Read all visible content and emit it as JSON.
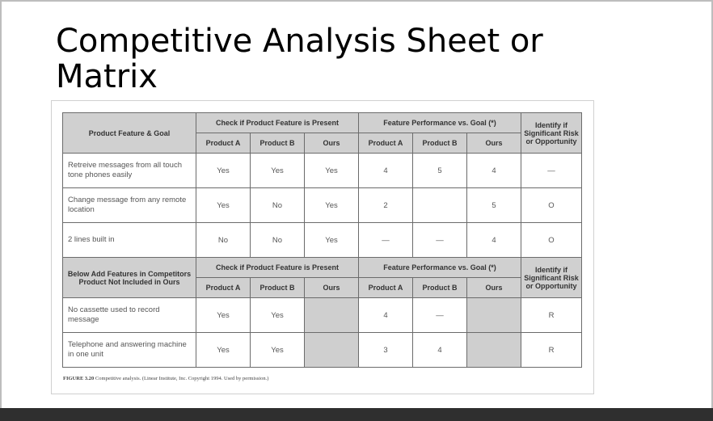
{
  "slide": {
    "title": "Competitive Analysis Sheet or Matrix"
  },
  "table": {
    "section1": {
      "feature_header": "Product Feature & Goal",
      "group_present": "Check if Product Feature is Present",
      "group_performance": "Feature Performance vs. Goal (*)",
      "risk_header": "Identify if Significant Risk or Opportunity",
      "subheaders": [
        "Product A",
        "Product B",
        "Ours",
        "Product A",
        "Product B",
        "Ours"
      ],
      "rows": [
        {
          "feature": "Retreive messages from all touch tone phones easily",
          "cells": [
            "Yes",
            "Yes",
            "Yes",
            "4",
            "5",
            "4"
          ],
          "risk": "—"
        },
        {
          "feature": "Change message from any remote location",
          "cells": [
            "Yes",
            "No",
            "Yes",
            "2",
            "",
            "5"
          ],
          "risk": "O"
        },
        {
          "feature": "2 lines built in",
          "cells": [
            "No",
            "No",
            "Yes",
            "—",
            "—",
            "4"
          ],
          "risk": "O"
        }
      ]
    },
    "section2": {
      "feature_header": "Below Add Features in Competitors Product Not Included in Ours",
      "group_present": "Check if Product Feature is Present",
      "group_performance": "Feature Performance vs. Goal (*)",
      "risk_header": "Identify if Significant Risk or Opportunity",
      "subheaders": [
        "Product A",
        "Product B",
        "Ours",
        "Product A",
        "Product B",
        "Ours"
      ],
      "rows": [
        {
          "feature": "No cassette used to record message",
          "cells": [
            "Yes",
            "Yes",
            "",
            "4",
            "—",
            ""
          ],
          "risk": "R"
        },
        {
          "feature": "Telephone and answering machine in one unit",
          "cells": [
            "Yes",
            "Yes",
            "",
            "3",
            "4",
            ""
          ],
          "risk": "R"
        }
      ]
    }
  },
  "caption": {
    "label": "FIGURE 3.20",
    "text": "Competitive analysis. (Linear Institute, Inc. Copyright 1994. Used by permission.)"
  }
}
